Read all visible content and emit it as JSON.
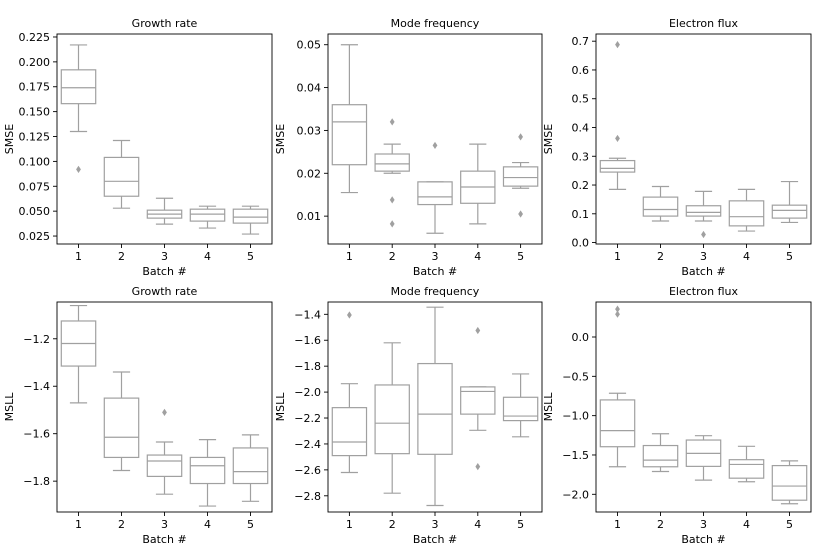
{
  "style": {
    "box_color": "#a0a0a0",
    "axis_color": "#000000",
    "background": "#ffffff"
  },
  "chart_data": [
    {
      "type": "box",
      "title": "Growth rate",
      "xlabel": "Batch #",
      "ylabel": "SMSE",
      "categories": [
        "1",
        "2",
        "3",
        "4",
        "5"
      ],
      "ylim": [
        0.017,
        0.228
      ],
      "yticks": [
        0.025,
        0.05,
        0.075,
        0.1,
        0.125,
        0.15,
        0.175,
        0.2,
        0.225
      ],
      "ytick_labels": [
        "0.025",
        "0.050",
        "0.075",
        "0.100",
        "0.125",
        "0.150",
        "0.175",
        "0.200",
        "0.225"
      ],
      "boxes": [
        {
          "whisker_low": 0.13,
          "q1": 0.158,
          "median": 0.174,
          "q3": 0.192,
          "whisker_high": 0.217,
          "outliers": [
            0.092
          ]
        },
        {
          "whisker_low": 0.053,
          "q1": 0.065,
          "median": 0.08,
          "q3": 0.104,
          "whisker_high": 0.121,
          "outliers": []
        },
        {
          "whisker_low": 0.037,
          "q1": 0.043,
          "median": 0.047,
          "q3": 0.051,
          "whisker_high": 0.063,
          "outliers": []
        },
        {
          "whisker_low": 0.033,
          "q1": 0.04,
          "median": 0.047,
          "q3": 0.052,
          "whisker_high": 0.055,
          "outliers": []
        },
        {
          "whisker_low": 0.027,
          "q1": 0.038,
          "median": 0.044,
          "q3": 0.052,
          "whisker_high": 0.055,
          "outliers": []
        }
      ]
    },
    {
      "type": "box",
      "title": "Mode frequency",
      "xlabel": "Batch #",
      "ylabel": "SMSE",
      "categories": [
        "1",
        "2",
        "3",
        "4",
        "5"
      ],
      "ylim": [
        0.0035,
        0.0525
      ],
      "yticks": [
        0.01,
        0.02,
        0.03,
        0.04,
        0.05
      ],
      "ytick_labels": [
        "0.01",
        "0.02",
        "0.03",
        "0.04",
        "0.05"
      ],
      "boxes": [
        {
          "whisker_low": 0.0155,
          "q1": 0.022,
          "median": 0.032,
          "q3": 0.036,
          "whisker_high": 0.05,
          "outliers": []
        },
        {
          "whisker_low": 0.02,
          "q1": 0.0205,
          "median": 0.0222,
          "q3": 0.0245,
          "whisker_high": 0.0268,
          "outliers": [
            0.032,
            0.0138,
            0.0082
          ]
        },
        {
          "whisker_low": 0.006,
          "q1": 0.0127,
          "median": 0.0145,
          "q3": 0.018,
          "whisker_high": 0.018,
          "outliers": [
            0.0265
          ]
        },
        {
          "whisker_low": 0.0082,
          "q1": 0.013,
          "median": 0.0168,
          "q3": 0.0205,
          "whisker_high": 0.0268,
          "outliers": []
        },
        {
          "whisker_low": 0.0165,
          "q1": 0.017,
          "median": 0.019,
          "q3": 0.0215,
          "whisker_high": 0.0225,
          "outliers": [
            0.0285,
            0.0105
          ]
        }
      ]
    },
    {
      "type": "box",
      "title": "Electron flux",
      "xlabel": "Batch #",
      "ylabel": "SMSE",
      "categories": [
        "1",
        "2",
        "3",
        "4",
        "5"
      ],
      "ylim": [
        -0.005,
        0.725
      ],
      "yticks": [
        0.0,
        0.1,
        0.2,
        0.3,
        0.4,
        0.5,
        0.6,
        0.7
      ],
      "ytick_labels": [
        "0.0",
        "0.1",
        "0.2",
        "0.3",
        "0.4",
        "0.5",
        "0.6",
        "0.7"
      ],
      "boxes": [
        {
          "whisker_low": 0.185,
          "q1": 0.245,
          "median": 0.258,
          "q3": 0.285,
          "whisker_high": 0.293,
          "outliers": [
            0.688,
            0.362
          ]
        },
        {
          "whisker_low": 0.075,
          "q1": 0.092,
          "median": 0.115,
          "q3": 0.158,
          "whisker_high": 0.195,
          "outliers": []
        },
        {
          "whisker_low": 0.075,
          "q1": 0.092,
          "median": 0.105,
          "q3": 0.128,
          "whisker_high": 0.178,
          "outliers": [
            0.028
          ]
        },
        {
          "whisker_low": 0.04,
          "q1": 0.058,
          "median": 0.09,
          "q3": 0.145,
          "whisker_high": 0.185,
          "outliers": []
        },
        {
          "whisker_low": 0.07,
          "q1": 0.085,
          "median": 0.112,
          "q3": 0.13,
          "whisker_high": 0.212,
          "outliers": []
        }
      ]
    },
    {
      "type": "box",
      "title": "Growth rate",
      "xlabel": "Batch #",
      "ylabel": "MSLL",
      "categories": [
        "1",
        "2",
        "3",
        "4",
        "5"
      ],
      "ylim": [
        -1.93,
        -1.045
      ],
      "yticks": [
        -1.8,
        -1.6,
        -1.4,
        -1.2
      ],
      "ytick_labels": [
        "−1.8",
        "−1.6",
        "−1.4",
        "−1.2"
      ],
      "boxes": [
        {
          "whisker_low": -1.47,
          "q1": -1.315,
          "median": -1.22,
          "q3": -1.125,
          "whisker_high": -1.06,
          "outliers": []
        },
        {
          "whisker_low": -1.755,
          "q1": -1.7,
          "median": -1.615,
          "q3": -1.45,
          "whisker_high": -1.34,
          "outliers": []
        },
        {
          "whisker_low": -1.855,
          "q1": -1.78,
          "median": -1.715,
          "q3": -1.69,
          "whisker_high": -1.635,
          "outliers": [
            -1.51
          ]
        },
        {
          "whisker_low": -1.905,
          "q1": -1.81,
          "median": -1.735,
          "q3": -1.7,
          "whisker_high": -1.625,
          "outliers": []
        },
        {
          "whisker_low": -1.885,
          "q1": -1.81,
          "median": -1.76,
          "q3": -1.66,
          "whisker_high": -1.605,
          "outliers": []
        }
      ]
    },
    {
      "type": "box",
      "title": "Mode frequency",
      "xlabel": "Batch #",
      "ylabel": "MSLL",
      "categories": [
        "1",
        "2",
        "3",
        "4",
        "5"
      ],
      "ylim": [
        -2.925,
        -1.305
      ],
      "yticks": [
        -2.8,
        -2.6,
        -2.4,
        -2.2,
        -2.0,
        -1.8,
        -1.6,
        -1.4
      ],
      "ytick_labels": [
        "−2.8",
        "−2.6",
        "−2.4",
        "−2.2",
        "−2.0",
        "−1.8",
        "−1.6",
        "−1.4"
      ],
      "boxes": [
        {
          "whisker_low": -2.62,
          "q1": -2.49,
          "median": -2.385,
          "q3": -2.12,
          "whisker_high": -1.935,
          "outliers": [
            -1.405
          ]
        },
        {
          "whisker_low": -2.78,
          "q1": -2.475,
          "median": -2.24,
          "q3": -1.945,
          "whisker_high": -1.62,
          "outliers": []
        },
        {
          "whisker_low": -2.875,
          "q1": -2.48,
          "median": -2.17,
          "q3": -1.78,
          "whisker_high": -1.345,
          "outliers": []
        },
        {
          "whisker_low": -2.295,
          "q1": -2.17,
          "median": -1.995,
          "q3": -1.96,
          "whisker_high": -1.96,
          "outliers": [
            -1.525,
            -2.575
          ]
        },
        {
          "whisker_low": -2.345,
          "q1": -2.22,
          "median": -2.185,
          "q3": -2.04,
          "whisker_high": -1.86,
          "outliers": []
        }
      ]
    },
    {
      "type": "box",
      "title": "Electron flux",
      "xlabel": "Batch #",
      "ylabel": "MSLL",
      "categories": [
        "1",
        "2",
        "3",
        "4",
        "5"
      ],
      "ylim": [
        -2.225,
        0.445
      ],
      "yticks": [
        -2.0,
        -1.5,
        -1.0,
        -0.5,
        0.0
      ],
      "ytick_labels": [
        "−2.0",
        "−1.5",
        "−1.0",
        "−0.5",
        "0.0"
      ],
      "boxes": [
        {
          "whisker_low": -1.65,
          "q1": -1.395,
          "median": -1.19,
          "q3": -0.8,
          "whisker_high": -0.715,
          "outliers": [
            0.355,
            0.29
          ]
        },
        {
          "whisker_low": -1.71,
          "q1": -1.65,
          "median": -1.565,
          "q3": -1.38,
          "whisker_high": -1.23,
          "outliers": []
        },
        {
          "whisker_low": -1.82,
          "q1": -1.645,
          "median": -1.48,
          "q3": -1.31,
          "whisker_high": -1.255,
          "outliers": []
        },
        {
          "whisker_low": -1.84,
          "q1": -1.795,
          "median": -1.62,
          "q3": -1.56,
          "whisker_high": -1.39,
          "outliers": []
        },
        {
          "whisker_low": -2.12,
          "q1": -2.075,
          "median": -1.895,
          "q3": -1.635,
          "whisker_high": -1.575,
          "outliers": []
        }
      ]
    }
  ]
}
